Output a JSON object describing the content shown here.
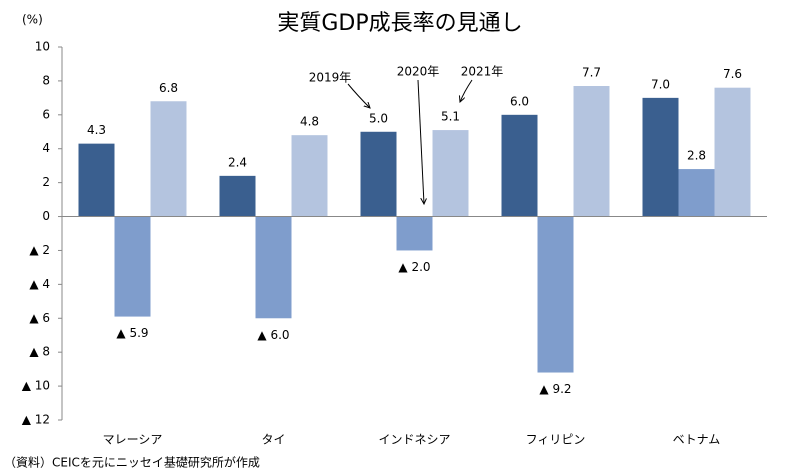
{
  "chart_data": {
    "type": "bar",
    "title": "実質GDP成長率の見通し",
    "y_unit": "(%)",
    "source": "（資料）CEICを元にニッセイ基礎研究所が作成",
    "categories": [
      "マレーシア",
      "タイ",
      "インドネシア",
      "フィリピン",
      "ベトナム"
    ],
    "series": [
      {
        "name": "2019年",
        "color": "#3a5f8f",
        "values": [
          4.3,
          2.4,
          5.0,
          6.0,
          7.0
        ],
        "value_labels": [
          "4.3",
          "2.4",
          "5.0",
          "6.0",
          "7.0"
        ]
      },
      {
        "name": "2020年",
        "color": "#7f9dcc",
        "values": [
          -5.9,
          -6.0,
          -2.0,
          -9.2,
          2.8
        ],
        "value_labels": [
          "▲ 5.9",
          "▲ 6.0",
          "▲ 2.0",
          "▲ 9.2",
          "2.8"
        ]
      },
      {
        "name": "2021年",
        "color": "#b4c4df",
        "values": [
          6.8,
          4.8,
          5.1,
          7.7,
          7.6
        ],
        "value_labels": [
          "6.8",
          "4.8",
          "5.1",
          "7.7",
          "7.6"
        ]
      }
    ],
    "ylim": [
      -12,
      10
    ],
    "yticks": [
      10,
      8,
      6,
      4,
      2,
      0,
      {
        "value": -2,
        "label": "▲ 2"
      },
      {
        "value": -4,
        "label": "▲ 4"
      },
      {
        "value": -6,
        "label": "▲ 6"
      },
      {
        "value": -8,
        "label": "▲ 8"
      },
      {
        "value": -10,
        "label": "▲ 10"
      },
      {
        "value": -12,
        "label": "▲ 12"
      }
    ],
    "grid": false
  }
}
